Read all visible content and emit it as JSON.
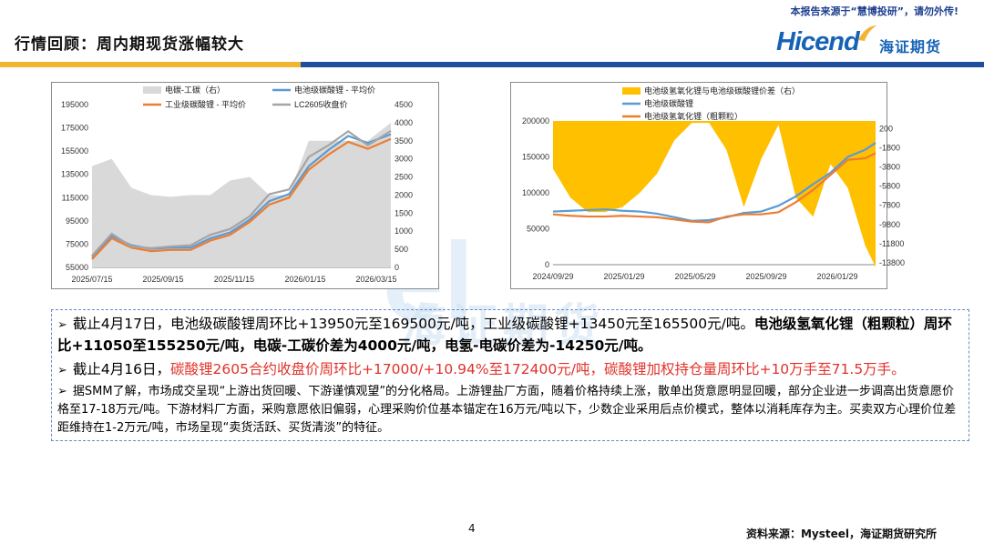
{
  "header": {
    "notice": "本报告来源于“慧博投研”，请勿外传!",
    "title": "行情回顾：周内期现货涨幅较大",
    "logo_word": "Hicend",
    "logo_cn": "海证期货",
    "watermark_word": "el",
    "watermark_cn": "海证期货"
  },
  "colors": {
    "bar_yellow": "#f2b530",
    "bar_blue": "#1f4f9c",
    "brand_blue": "#1663b6",
    "red_text": "#e0322a",
    "area_gray": "#d9d9d9",
    "area_yellow": "#ffc000",
    "line_blue": "#5b9bd5",
    "line_orange": "#ed7d31",
    "line_gray": "#a5a5a5"
  },
  "chart_data": [
    {
      "type": "line",
      "legend": [
        "电碳-工碳（右）",
        "电池级碳酸锂 - 平均价",
        "工业级碳酸锂 - 平均价",
        "LC2605收盘价"
      ],
      "x_ticks": [
        "2025/07/15",
        "2025/09/15",
        "2025/11/15",
        "2026/01/15",
        "2026/03/15"
      ],
      "x_range": [
        "2025/07/10",
        "2026/04/17"
      ],
      "y_left": {
        "min": 55000,
        "max": 195000,
        "ticks": [
          "55000",
          "75000",
          "95000",
          "115000",
          "135000",
          "155000",
          "175000",
          "195000"
        ]
      },
      "y_right": {
        "min": 0,
        "max": 4500,
        "ticks": [
          "0",
          "500",
          "1000",
          "1500",
          "2000",
          "2500",
          "3000",
          "3500",
          "4000",
          "4500"
        ]
      },
      "x_months": [
        0,
        0.6,
        1.2,
        1.8,
        2.4,
        3.0,
        3.6,
        4.2,
        4.8,
        5.4,
        6.0,
        6.6,
        7.2,
        7.8,
        8.4,
        9.1
      ],
      "series": [
        {
          "name": "电池级碳酸锂 - 平均价",
          "axis": "left",
          "values": [
            64000,
            82000,
            74000,
            71000,
            72000,
            72000,
            80000,
            85000,
            96000,
            112000,
            118000,
            142000,
            156000,
            168000,
            162000,
            169500
          ]
        },
        {
          "name": "工业级碳酸锂 - 平均价",
          "axis": "left",
          "values": [
            62000,
            80000,
            72000,
            69000,
            70000,
            70000,
            78000,
            83000,
            94000,
            109000,
            115000,
            139000,
            152000,
            163000,
            157000,
            165500
          ]
        },
        {
          "name": "LC2605收盘价",
          "axis": "left",
          "values": [
            65000,
            84000,
            73000,
            71500,
            73000,
            74000,
            83000,
            88000,
            99000,
            118000,
            122000,
            150000,
            160000,
            172000,
            160000,
            172400
          ]
        },
        {
          "name": "电碳-工碳（右）",
          "axis": "right",
          "values": [
            2800,
            3000,
            2200,
            2000,
            1950,
            2000,
            2000,
            2400,
            2500,
            2000,
            2000,
            3500,
            3500,
            3500,
            3500,
            4000
          ]
        }
      ]
    },
    {
      "type": "line",
      "legend": [
        "电池级氢氧化锂与电池级碳酸锂价差（右）",
        "电池级碳酸锂",
        "电池级氢氧化锂（粗颗粒）"
      ],
      "x_ticks": [
        "2024/09/29",
        "2025/01/29",
        "2025/05/29",
        "2025/09/29",
        "2026/01/29"
      ],
      "x_range": [
        "2024/09/29",
        "2026/04/17"
      ],
      "y_left": {
        "min": 0,
        "max": 200000,
        "ticks": [
          "0",
          "50000",
          "100000",
          "150000",
          "200000"
        ]
      },
      "y_right": {
        "min": -14000,
        "max": 1000,
        "ticks": [
          "200",
          "-1800",
          "-3800",
          "-5800",
          "-7800",
          "-9800",
          "-11800",
          "-13800"
        ]
      },
      "x_months": [
        0,
        1,
        2,
        3,
        4,
        5,
        6,
        7,
        8,
        9,
        10,
        11,
        12,
        13,
        14,
        15,
        16,
        17,
        18,
        18.6
      ],
      "series": [
        {
          "name": "电池级碳酸锂",
          "axis": "left",
          "values": [
            74000,
            75000,
            76000,
            77000,
            75000,
            74000,
            71000,
            66000,
            61000,
            62000,
            66000,
            72000,
            74000,
            82000,
            95000,
            112000,
            128000,
            150000,
            160000,
            169500
          ]
        },
        {
          "name": "电池级氢氧化锂（粗颗粒）",
          "axis": "left",
          "values": [
            70000,
            68000,
            67000,
            67000,
            68000,
            67000,
            66000,
            63000,
            60000,
            59000,
            67000,
            70000,
            70000,
            73000,
            87000,
            104000,
            125000,
            146000,
            148000,
            155250
          ]
        },
        {
          "name": "电池级氢氧化锂与电池级碳酸锂价差（右）",
          "axis": "right",
          "values": [
            -4000,
            -7000,
            -8500,
            -8500,
            -8000,
            -6500,
            -4500,
            -1000,
            800,
            800,
            -2000,
            -8000,
            -3000,
            600,
            -7000,
            -9000,
            -3500,
            -6000,
            -12000,
            -14250
          ]
        }
      ]
    }
  ],
  "bullets": {
    "b1_p1": "截止4月17日，电池级碳酸锂周环比+13950元至169500元/吨，工业级碳酸锂+13450元至165500元/吨。",
    "b1_p2": "电池级氢氧化锂（粗颗粒）周环比+11050至155250元/吨，电碳-工碳价差为4000元/吨，电氢-电碳价差为-14250元/吨。",
    "b2_p1": "截止4月16日，",
    "b2_p2": "碳酸锂2605合约收盘价周环比+17000/+10.94%至172400元/吨，",
    "b2_p3": "碳酸锂加权持仓量周环比+10万手至71.5万手。",
    "b3": "据SMM了解，市场成交呈现“上游出货回暖、下游谨慎观望”的分化格局。上游锂盐厂方面，随着价格持续上涨，散单出货意愿明显回暖，部分企业进一步调高出货意愿价格至17-18万元/吨。下游材料厂方面，采购意愿依旧偏弱，心理采购价位基本锚定在16万元/吨以下，少数企业采用后点价模式，整体以消耗库存为主。买卖双方心理价位差距维持在1-2万元/吨，市场呈现“卖货活跃、买货清淡”的特征。"
  },
  "footer": {
    "page": "4",
    "source": "资料来源：Mysteel，海证期货研究所"
  }
}
